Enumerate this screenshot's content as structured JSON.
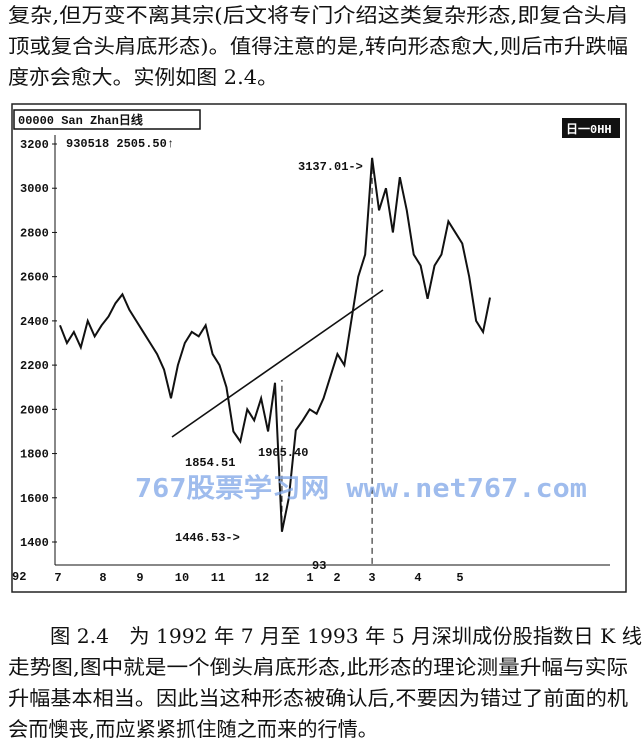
{
  "text": [
    "复杂,但万变不离其宗(后文将专门介绍这类复杂形态,即复合头肩",
    "顶或复合头肩底形态)。值得注意的是,转向形态愈大,则后市升跌幅",
    "度亦会愈大。实例如图 2.4。"
  ],
  "figure": {
    "header": "00000 San Zhan日线",
    "corner": "日一0HH",
    "info": "930518 2505.50↑",
    "ylim": [
      1400,
      3200
    ],
    "yticks": [
      1400,
      1600,
      1800,
      2000,
      2200,
      2400,
      2600,
      2800,
      3000,
      3200
    ],
    "months": [
      "7",
      "8",
      "9",
      "10",
      "11",
      "12",
      "1",
      "2",
      "3",
      "4",
      "5"
    ],
    "years": [
      "92",
      "93"
    ],
    "annotations": [
      "3137.01->",
      "1854.51",
      "1905.40",
      "1446.53->"
    ],
    "watermark": "767股票学习网 www.net767.com",
    "values": [
      2380,
      2300,
      2350,
      2280,
      2400,
      2330,
      2380,
      2420,
      2480,
      2520,
      2450,
      2400,
      2350,
      2300,
      2250,
      2180,
      2050,
      2200,
      2300,
      2350,
      2330,
      2380,
      2250,
      2200,
      2100,
      1900,
      1854.51,
      2000,
      1950,
      2050,
      1900,
      2120,
      1446.53,
      1600,
      1905.4,
      1950,
      2000,
      1980,
      2050,
      2150,
      2250,
      2200,
      2400,
      2600,
      2700,
      3137.01,
      2900,
      3000,
      2800,
      3050,
      2900,
      2700,
      2650,
      2500,
      2650,
      2700,
      2850,
      2800,
      2750,
      2600,
      2400,
      2350,
      2505.5
    ]
  },
  "caption": [
    "图 2.4　为 1992 年 7 月至 1993 年 5 月深圳成份股指数日 K 线",
    "走势图,图中就是一个倒头肩底形态,此形态的理论测量升幅与实际",
    "升幅基本相当。因此当这种形态被确认后,不要因为错过了前面的机",
    "会而懊丧,而应紧紧抓住随之而来的行情。"
  ]
}
